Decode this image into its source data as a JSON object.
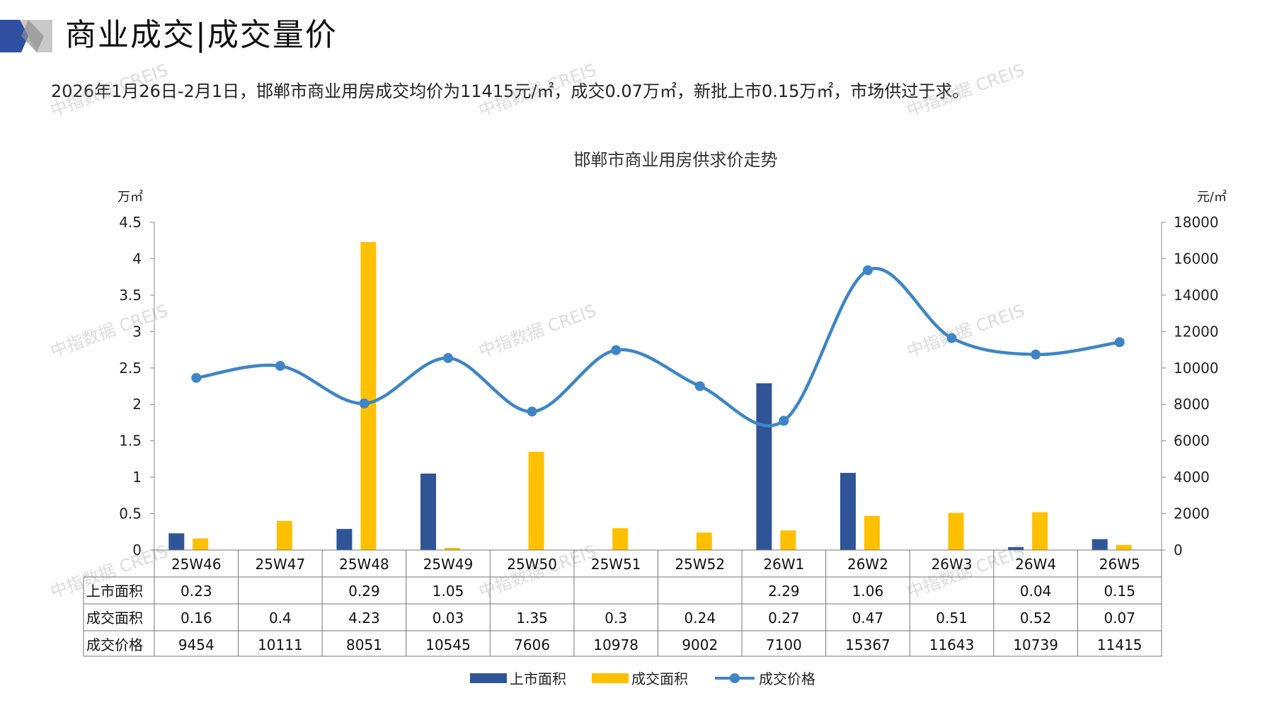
{
  "page": {
    "title": "商业成交|成交量价",
    "summary": "2026年1月26日-2月1日，邯郸市商业用房成交均价为11415元/㎡，成交0.07万㎡，新批上市0.15万㎡，市场供过于求。",
    "watermark": "中指数据 CREIS"
  },
  "chart_data": {
    "type": "bar",
    "title": "邯郸市商业用房供求价走势",
    "y_left_unit": "万㎡",
    "y_right_unit": "元/㎡",
    "y_left_range": [
      0,
      4.5
    ],
    "y_right_range": [
      0,
      18000
    ],
    "y_left_ticks": [
      "0",
      "0.5",
      "1",
      "1.5",
      "2",
      "2.5",
      "3",
      "3.5",
      "4",
      "4.5"
    ],
    "y_right_ticks": [
      "0",
      "2000",
      "4000",
      "6000",
      "8000",
      "10000",
      "12000",
      "14000",
      "16000",
      "18000"
    ],
    "categories": [
      "25W46",
      "25W47",
      "25W48",
      "25W49",
      "25W50",
      "25W51",
      "25W52",
      "26W1",
      "26W2",
      "26W3",
      "26W4",
      "26W5"
    ],
    "series": [
      {
        "name": "上市面积",
        "type": "bar",
        "axis": "left",
        "color": "#2f5597",
        "values": [
          0.23,
          null,
          0.29,
          1.05,
          null,
          null,
          null,
          2.29,
          1.06,
          null,
          0.04,
          0.15
        ],
        "labels": [
          "0.23",
          "",
          "0.29",
          "1.05",
          "",
          "",
          "",
          "2.29",
          "1.06",
          "",
          "0.04",
          "0.15"
        ]
      },
      {
        "name": "成交面积",
        "type": "bar",
        "axis": "left",
        "color": "#ffc000",
        "values": [
          0.16,
          0.4,
          4.23,
          0.03,
          1.35,
          0.3,
          0.24,
          0.27,
          0.47,
          0.51,
          0.52,
          0.07
        ],
        "labels": [
          "0.16",
          "0.4",
          "4.23",
          "0.03",
          "1.35",
          "0.3",
          "0.24",
          "0.27",
          "0.47",
          "0.51",
          "0.52",
          "0.07"
        ]
      },
      {
        "name": "成交价格",
        "type": "line",
        "axis": "right",
        "color": "#3d85c6",
        "values": [
          9454,
          10111,
          8051,
          10545,
          7606,
          10978,
          9002,
          7100,
          15367,
          11643,
          10739,
          11415
        ],
        "labels": [
          "9454",
          "10111",
          "8051",
          "10545",
          "7606",
          "10978",
          "9002",
          "7100",
          "15367",
          "11643",
          "10739",
          "11415"
        ]
      }
    ],
    "legend_position": "bottom",
    "grid": false,
    "data_table": true
  }
}
